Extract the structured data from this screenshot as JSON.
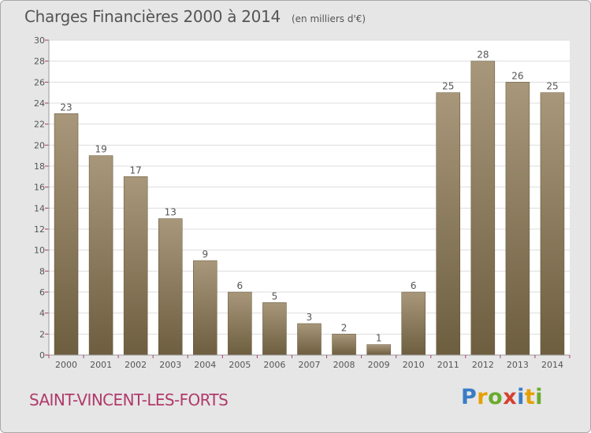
{
  "header": {
    "title": "Charges Financières 2000 à 2014",
    "subtitle": "(en milliers d'€)"
  },
  "footer": {
    "commune": "SAINT-VINCENT-LES-FORTS",
    "logo_letters": [
      "P",
      "r",
      "o",
      "x",
      "i",
      "t",
      "i"
    ],
    "logo_colors": [
      "#3a7cc6",
      "#e5a000",
      "#6aab2e",
      "#d63f2e",
      "#3a7cc6",
      "#e5a000",
      "#6aab2e"
    ]
  },
  "colors": {
    "bar_top": "#a8977a",
    "bar_bottom": "#6e5e40",
    "plot_background": "#ffffff",
    "grid": "#dddddd",
    "text": "#555555",
    "tick": "#b03a6a"
  },
  "chart_data": {
    "type": "bar",
    "title": "Charges Financières 2000 à 2014",
    "subtitle": "(en milliers d'€)",
    "xlabel": "",
    "ylabel": "",
    "categories": [
      "2000",
      "2001",
      "2002",
      "2003",
      "2004",
      "2005",
      "2006",
      "2007",
      "2008",
      "2009",
      "2010",
      "2011",
      "2012",
      "2013",
      "2014"
    ],
    "values": [
      23,
      19,
      17,
      13,
      9,
      6,
      5,
      3,
      2,
      1,
      6,
      25,
      28,
      26,
      25
    ],
    "ylim": [
      0,
      30
    ],
    "yticks": [
      0,
      2,
      4,
      6,
      8,
      10,
      12,
      14,
      16,
      18,
      20,
      22,
      24,
      26,
      28,
      30
    ],
    "grid": true,
    "legend": "none"
  }
}
